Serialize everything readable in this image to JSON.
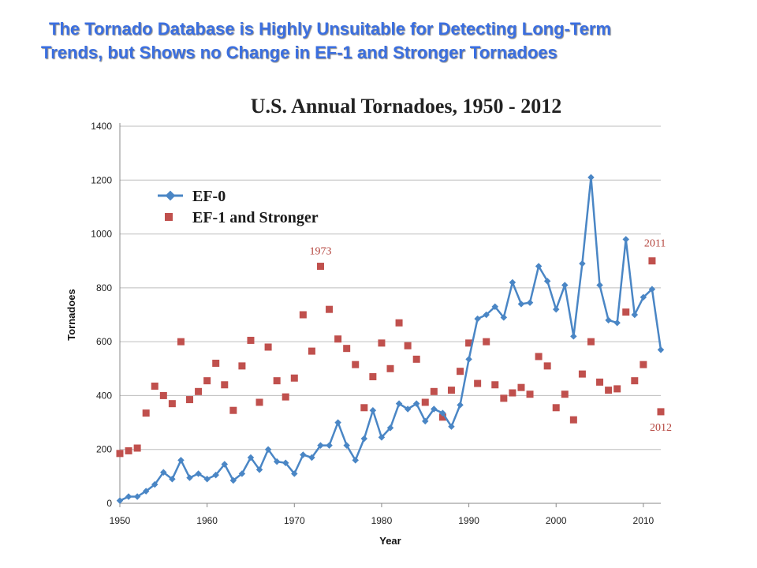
{
  "heading": {
    "line1": "The Tornado Database is Highly Unsuitable for Detecting Long-Term",
    "line2": "Trends, but Shows no Change in EF-1 and Stronger Tornadoes"
  },
  "chart_data": {
    "type": "line",
    "title": "U.S. Annual Tornadoes, 1950 - 2012",
    "xlabel": "Year",
    "ylabel": "Tornadoes",
    "xlim": [
      1950,
      2012
    ],
    "ylim": [
      0,
      1400
    ],
    "x_ticks": [
      1950,
      1960,
      1970,
      1980,
      1990,
      2000,
      2010
    ],
    "y_ticks": [
      0,
      200,
      400,
      600,
      800,
      1000,
      1200,
      1400
    ],
    "grid": "horizontal",
    "legend_position": "top-left",
    "series": [
      {
        "name": "EF-0",
        "style": "line-with-diamond-markers",
        "color": "#4a86c5",
        "x": [
          1950,
          1951,
          1952,
          1953,
          1954,
          1955,
          1956,
          1957,
          1958,
          1959,
          1960,
          1961,
          1962,
          1963,
          1964,
          1965,
          1966,
          1967,
          1968,
          1969,
          1970,
          1971,
          1972,
          1973,
          1974,
          1975,
          1976,
          1977,
          1978,
          1979,
          1980,
          1981,
          1982,
          1983,
          1984,
          1985,
          1986,
          1987,
          1988,
          1989,
          1990,
          1991,
          1992,
          1993,
          1994,
          1995,
          1996,
          1997,
          1998,
          1999,
          2000,
          2001,
          2002,
          2003,
          2004,
          2005,
          2006,
          2007,
          2008,
          2009,
          2010,
          2011,
          2012
        ],
        "values": [
          10,
          25,
          25,
          45,
          70,
          115,
          90,
          160,
          95,
          110,
          90,
          105,
          145,
          85,
          110,
          170,
          125,
          200,
          155,
          150,
          110,
          180,
          170,
          215,
          215,
          300,
          215,
          160,
          240,
          345,
          245,
          280,
          370,
          350,
          370,
          305,
          350,
          335,
          285,
          365,
          535,
          685,
          700,
          730,
          690,
          820,
          740,
          745,
          880,
          825,
          720,
          810,
          620,
          890,
          1210,
          810,
          680,
          670,
          980,
          700,
          765,
          795,
          570
        ]
      },
      {
        "name": "EF-1 and Stronger",
        "style": "square-markers",
        "color": "#c0504d",
        "x": [
          1950,
          1951,
          1952,
          1953,
          1954,
          1955,
          1956,
          1957,
          1958,
          1959,
          1960,
          1961,
          1962,
          1963,
          1964,
          1965,
          1966,
          1967,
          1968,
          1969,
          1970,
          1971,
          1972,
          1973,
          1974,
          1975,
          1976,
          1977,
          1978,
          1979,
          1980,
          1981,
          1982,
          1983,
          1984,
          1985,
          1986,
          1987,
          1988,
          1989,
          1990,
          1991,
          1992,
          1993,
          1994,
          1995,
          1996,
          1997,
          1998,
          1999,
          2000,
          2001,
          2002,
          2003,
          2004,
          2005,
          2006,
          2007,
          2008,
          2009,
          2010,
          2011,
          2012
        ],
        "values": [
          185,
          195,
          205,
          335,
          435,
          400,
          370,
          600,
          385,
          415,
          455,
          520,
          440,
          345,
          510,
          605,
          375,
          580,
          455,
          395,
          465,
          700,
          565,
          880,
          720,
          610,
          575,
          515,
          355,
          470,
          595,
          500,
          670,
          585,
          535,
          375,
          415,
          320,
          420,
          490,
          595,
          445,
          600,
          440,
          390,
          410,
          430,
          405,
          545,
          510,
          355,
          405,
          310,
          480,
          600,
          450,
          420,
          425,
          710,
          455,
          515,
          900,
          340
        ]
      }
    ],
    "annotations": [
      {
        "text": "1973",
        "x": 1973,
        "y": 880
      },
      {
        "text": "2011",
        "x": 2011,
        "y": 900
      },
      {
        "text": "2012",
        "x": 2012,
        "y": 340
      }
    ]
  }
}
